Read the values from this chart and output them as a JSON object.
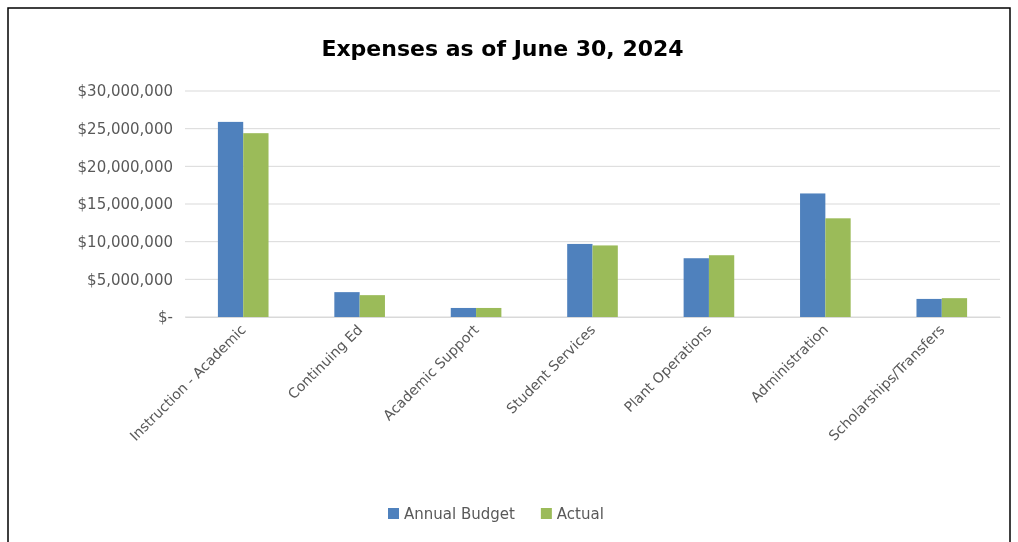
{
  "chart_data": {
    "type": "bar",
    "title": "Expenses as of June 30, 2024",
    "categories": [
      "Instruction - Academic",
      "Continuing Ed",
      "Academic Support",
      "Student Services",
      "Plant Operations",
      "Administration",
      "Scholarships/Transfers"
    ],
    "series": [
      {
        "name": "Annual Budget",
        "color": "#4f81bd",
        "values": [
          25900000,
          3300000,
          1200000,
          9700000,
          7800000,
          16400000,
          2400000
        ]
      },
      {
        "name": "Actual",
        "color": "#9bbb59",
        "values": [
          24400000,
          2900000,
          1200000,
          9500000,
          8200000,
          13100000,
          2500000
        ]
      }
    ],
    "ylim": [
      0,
      30000000
    ],
    "yticks": [
      {
        "value": 0,
        "label": "$-"
      },
      {
        "value": 5000000,
        "label": "$5,000,000"
      },
      {
        "value": 10000000,
        "label": "$10,000,000"
      },
      {
        "value": 15000000,
        "label": "$15,000,000"
      },
      {
        "value": 20000000,
        "label": "$20,000,000"
      },
      {
        "value": 25000000,
        "label": "$25,000,000"
      },
      {
        "value": 30000000,
        "label": "$30,000,000"
      }
    ],
    "grid": "y",
    "legend": "bottom"
  }
}
